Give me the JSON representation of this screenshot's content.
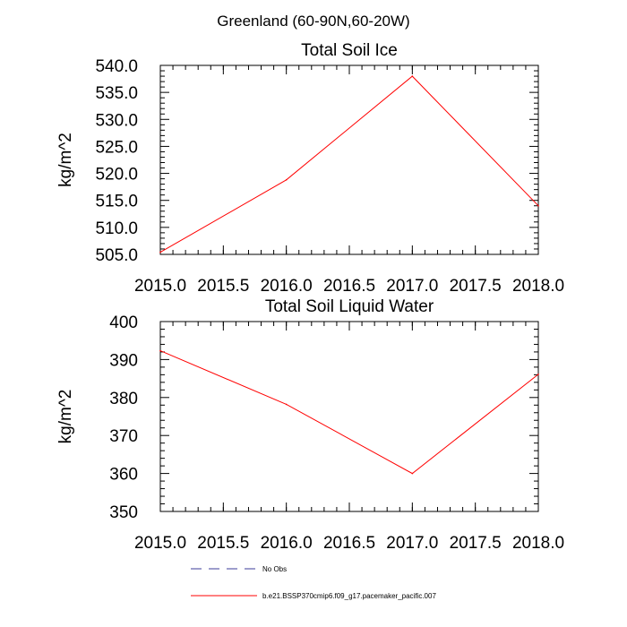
{
  "figure": {
    "title": "Greenland (60-90N,60-20W)"
  },
  "chart_data": [
    {
      "type": "line",
      "title": "Total Soil Ice",
      "xlabel": "",
      "ylabel": "kg/m^2",
      "xlim": [
        2015.0,
        2018.0
      ],
      "ylim": [
        505.0,
        540.0
      ],
      "xticks": [
        "2015.0",
        "2015.5",
        "2016.0",
        "2016.5",
        "2017.0",
        "2017.5",
        "2018.0"
      ],
      "yticks": [
        "505.0",
        "510.0",
        "515.0",
        "520.0",
        "525.0",
        "530.0",
        "535.0",
        "540.0"
      ],
      "grid": false,
      "series": [
        {
          "name": "b.e21.BSSP370cmip6.f09_g17.pacemaker_pacific.007",
          "color": "#ff0000",
          "x": [
            2015.0,
            2016.0,
            2017.0,
            2018.0
          ],
          "y": [
            505.4,
            518.8,
            538.0,
            514.0
          ]
        }
      ]
    },
    {
      "type": "line",
      "title": "Total Soil Liquid Water",
      "xlabel": "",
      "ylabel": "kg/m^2",
      "xlim": [
        2015.0,
        2018.0
      ],
      "ylim": [
        350,
        400
      ],
      "xticks": [
        "2015.0",
        "2015.5",
        "2016.0",
        "2016.5",
        "2017.0",
        "2017.5",
        "2018.0"
      ],
      "yticks": [
        "350",
        "360",
        "370",
        "380",
        "390",
        "400"
      ],
      "grid": false,
      "series": [
        {
          "name": "b.e21.BSSP370cmip6.f09_g17.pacemaker_pacific.007",
          "color": "#ff0000",
          "x": [
            2015.0,
            2016.0,
            2017.0,
            2018.0
          ],
          "y": [
            392.3,
            378.2,
            360.0,
            386.1
          ]
        }
      ]
    }
  ],
  "legend": {
    "placement": "bottom",
    "items": [
      {
        "label": "No Obs",
        "color": "#3b3b9a",
        "style": "dashed"
      },
      {
        "label": "b.e21.BSSP370cmip6.f09_g17.pacemaker_pacific.007",
        "color": "#ff0000",
        "style": "solid"
      }
    ]
  }
}
